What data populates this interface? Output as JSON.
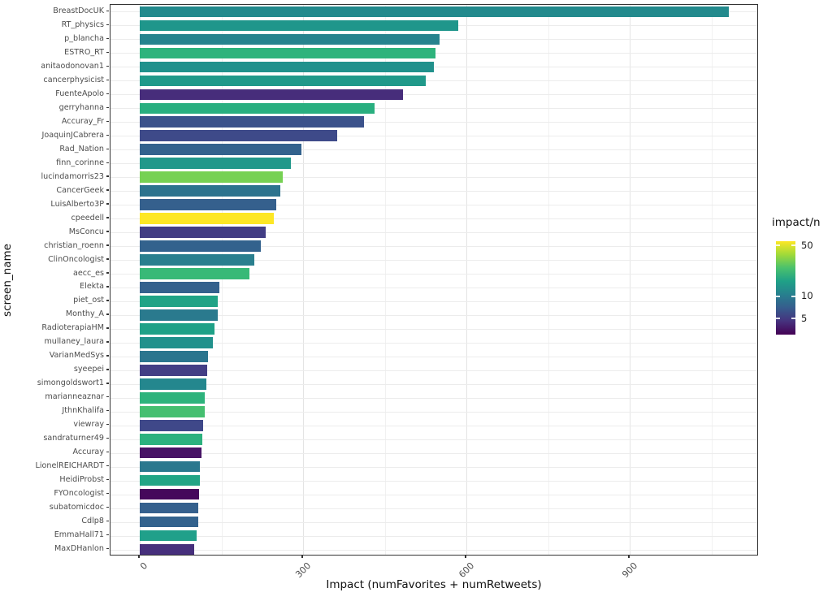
{
  "chart_data": {
    "type": "bar",
    "orientation": "horizontal",
    "xlabel": "Impact (numFavorites + numRetweets)",
    "ylabel": "screen_name",
    "x_ticks": [
      0,
      300,
      600,
      900
    ],
    "x_minor_gridlines": [
      150,
      450,
      750,
      1050
    ],
    "xlim": [
      0,
      1137
    ],
    "grid": true,
    "legend": {
      "title": "impact/n",
      "ticks": [
        50,
        10,
        5
      ],
      "scale": "log",
      "position": "right",
      "gradient_top_to_bottom": [
        "#fde725",
        "#a0da39",
        "#4ac16d",
        "#1fa187",
        "#277f8e",
        "#365c8d",
        "#46327e",
        "#440154"
      ]
    },
    "bars": [
      {
        "name": "BreastDocUK",
        "impact": 1082,
        "color": "#238a8d"
      },
      {
        "name": "RT_physics",
        "impact": 585,
        "color": "#1f968b"
      },
      {
        "name": "p_blancha",
        "impact": 551,
        "color": "#27838e"
      },
      {
        "name": "ESTRO_RT",
        "impact": 544,
        "color": "#2eb37c"
      },
      {
        "name": "anitaodonovan1",
        "impact": 540,
        "color": "#21918c"
      },
      {
        "name": "cancerphysicist",
        "impact": 525,
        "color": "#20998a"
      },
      {
        "name": "FuenteApolo",
        "impact": 483,
        "color": "#472d7b"
      },
      {
        "name": "gerryhanna",
        "impact": 431,
        "color": "#29af7f"
      },
      {
        "name": "Accuray_Fr",
        "impact": 412,
        "color": "#3b528b"
      },
      {
        "name": "JoaquinJCabrera",
        "impact": 362,
        "color": "#3e4a89"
      },
      {
        "name": "Rad_Nation",
        "impact": 297,
        "color": "#33628d"
      },
      {
        "name": "finn_corinne",
        "impact": 278,
        "color": "#21988a"
      },
      {
        "name": "lucindamorris23",
        "impact": 262,
        "color": "#76d153"
      },
      {
        "name": "CancerGeek",
        "impact": 258,
        "color": "#2c738e"
      },
      {
        "name": "LuisAlberto3P",
        "impact": 250,
        "color": "#35608d"
      },
      {
        "name": "cpeedell",
        "impact": 247,
        "color": "#fde725"
      },
      {
        "name": "MsConcu",
        "impact": 232,
        "color": "#423d84"
      },
      {
        "name": "christian_roenn",
        "impact": 223,
        "color": "#33628d"
      },
      {
        "name": "ClinOncologist",
        "impact": 211,
        "color": "#2a7f8e"
      },
      {
        "name": "aecc_es",
        "impact": 201,
        "color": "#38b977"
      },
      {
        "name": "Elekta",
        "impact": 146,
        "color": "#34618d"
      },
      {
        "name": "piet_ost",
        "impact": 144,
        "color": "#20a386"
      },
      {
        "name": "Monthy_A",
        "impact": 143,
        "color": "#2a7a8e"
      },
      {
        "name": "RadioterapiaHM",
        "impact": 137,
        "color": "#1fa187"
      },
      {
        "name": "mullaney_laura",
        "impact": 134,
        "color": "#21918c"
      },
      {
        "name": "VarianMedSys",
        "impact": 126,
        "color": "#2b758e"
      },
      {
        "name": "syeepei",
        "impact": 124,
        "color": "#433e85"
      },
      {
        "name": "simongoldswort1",
        "impact": 122,
        "color": "#24878e"
      },
      {
        "name": "marianneaznar",
        "impact": 120,
        "color": "#2eb37c"
      },
      {
        "name": "JthnKhalifa",
        "impact": 119,
        "color": "#45bf70"
      },
      {
        "name": "viewray",
        "impact": 116,
        "color": "#3f4889"
      },
      {
        "name": "sandraturner49",
        "impact": 115,
        "color": "#2cb17e"
      },
      {
        "name": "Accuray",
        "impact": 113,
        "color": "#471365"
      },
      {
        "name": "LionelREICHARDT",
        "impact": 111,
        "color": "#2a788e"
      },
      {
        "name": "HeidiProbst",
        "impact": 110,
        "color": "#21a585"
      },
      {
        "name": "FYOncologist",
        "impact": 109,
        "color": "#45085b"
      },
      {
        "name": "subatomicdoc",
        "impact": 108,
        "color": "#35608d"
      },
      {
        "name": "Cdlp8",
        "impact": 107,
        "color": "#33628d"
      },
      {
        "name": "EmmaHall71",
        "impact": 105,
        "color": "#20a08a"
      },
      {
        "name": "MaxDHanlon",
        "impact": 100,
        "color": "#462f7c"
      }
    ]
  }
}
